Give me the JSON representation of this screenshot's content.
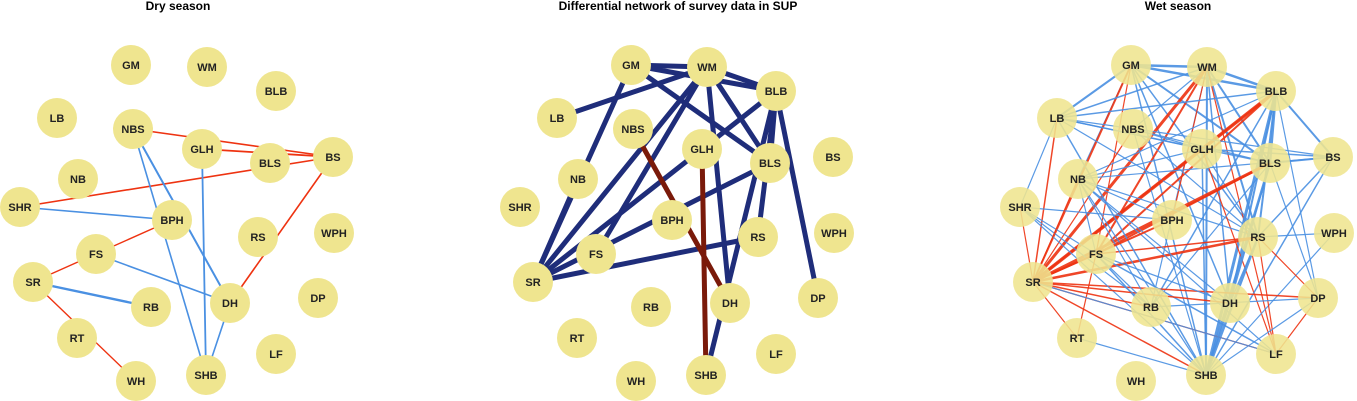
{
  "colors": {
    "node_fill": "#efe58f",
    "positive": "#4a90e2",
    "negative": "#ee3311",
    "diff_positive": "#1f2d7a",
    "diff_negative": "#7a1a0a"
  },
  "panels": [
    {
      "title": "Dry season",
      "edges": [
        {
          "a": "NBS",
          "b": "BS",
          "sign": "negative",
          "w": 1.6
        },
        {
          "a": "GLH",
          "b": "BS",
          "sign": "negative",
          "w": 1.8
        },
        {
          "a": "SHR",
          "b": "BS",
          "sign": "negative",
          "w": 1.6
        },
        {
          "a": "BS",
          "b": "DH",
          "sign": "negative",
          "w": 1.6
        },
        {
          "a": "BPH",
          "b": "SR",
          "sign": "negative",
          "w": 1.4
        },
        {
          "a": "SR",
          "b": "WH",
          "sign": "negative",
          "w": 1.4
        },
        {
          "a": "NBS",
          "b": "DH",
          "sign": "positive",
          "w": 2.0
        },
        {
          "a": "NBS",
          "b": "SHB",
          "sign": "positive",
          "w": 1.6
        },
        {
          "a": "GLH",
          "b": "SHB",
          "sign": "positive",
          "w": 1.8
        },
        {
          "a": "SHR",
          "b": "BPH",
          "sign": "positive",
          "w": 1.6
        },
        {
          "a": "FS",
          "b": "DH",
          "sign": "positive",
          "w": 1.6
        },
        {
          "a": "SR",
          "b": "RB",
          "sign": "positive",
          "w": 2.4
        },
        {
          "a": "DH",
          "b": "SHB",
          "sign": "positive",
          "w": 1.6
        }
      ]
    },
    {
      "title": "Differential network of survey data in SUP",
      "edges": [
        {
          "a": "GM",
          "b": "WM",
          "sign": "diff_positive",
          "w": 5
        },
        {
          "a": "GM",
          "b": "BLB",
          "sign": "diff_positive",
          "w": 5
        },
        {
          "a": "WM",
          "b": "BLB",
          "sign": "diff_positive",
          "w": 5
        },
        {
          "a": "GM",
          "b": "BLS",
          "sign": "diff_positive",
          "w": 5
        },
        {
          "a": "WM",
          "b": "BLS",
          "sign": "diff_positive",
          "w": 5
        },
        {
          "a": "WM",
          "b": "DH",
          "sign": "diff_positive",
          "w": 5
        },
        {
          "a": "GM",
          "b": "SR",
          "sign": "diff_positive",
          "w": 5
        },
        {
          "a": "WM",
          "b": "SR",
          "sign": "diff_positive",
          "w": 5
        },
        {
          "a": "WM",
          "b": "FS",
          "sign": "diff_positive",
          "w": 5
        },
        {
          "a": "LB",
          "b": "WM",
          "sign": "diff_positive",
          "w": 5
        },
        {
          "a": "BLB",
          "b": "SR",
          "sign": "diff_positive",
          "w": 5
        },
        {
          "a": "BLB",
          "b": "BLS",
          "sign": "diff_positive",
          "w": 5
        },
        {
          "a": "BLB",
          "b": "RS",
          "sign": "diff_positive",
          "w": 5
        },
        {
          "a": "BLB",
          "b": "SHB",
          "sign": "diff_positive",
          "w": 5
        },
        {
          "a": "BLB",
          "b": "DP",
          "sign": "diff_positive",
          "w": 5
        },
        {
          "a": "BLS",
          "b": "SR",
          "sign": "diff_positive",
          "w": 5
        },
        {
          "a": "NB",
          "b": "SR",
          "sign": "diff_positive",
          "w": 5
        },
        {
          "a": "SR",
          "b": "RS",
          "sign": "diff_positive",
          "w": 5
        },
        {
          "a": "NBS",
          "b": "DH",
          "sign": "diff_negative",
          "w": 5
        },
        {
          "a": "GLH",
          "b": "SHB",
          "sign": "diff_negative",
          "w": 5
        }
      ]
    },
    {
      "title": "Wet season",
      "edges": [
        {
          "a": "GM",
          "b": "WM",
          "sign": "positive",
          "w": 2.5
        },
        {
          "a": "GM",
          "b": "BLB",
          "sign": "positive",
          "w": 2.5
        },
        {
          "a": "GM",
          "b": "BLS",
          "sign": "positive",
          "w": 2
        },
        {
          "a": "GM",
          "b": "RS",
          "sign": "positive",
          "w": 1.5
        },
        {
          "a": "GM",
          "b": "SHB",
          "sign": "positive",
          "w": 1.5
        },
        {
          "a": "GM",
          "b": "DH",
          "sign": "positive",
          "w": 1.5
        },
        {
          "a": "GM",
          "b": "LB",
          "sign": "positive",
          "w": 2
        },
        {
          "a": "GM",
          "b": "NB",
          "sign": "positive",
          "w": 1.2
        },
        {
          "a": "GM",
          "b": "SR",
          "sign": "negative",
          "w": 2
        },
        {
          "a": "GM",
          "b": "FS",
          "sign": "negative",
          "w": 1.2
        },
        {
          "a": "WM",
          "b": "BLB",
          "sign": "positive",
          "w": 2.5
        },
        {
          "a": "WM",
          "b": "BLS",
          "sign": "positive",
          "w": 2
        },
        {
          "a": "WM",
          "b": "RS",
          "sign": "positive",
          "w": 2
        },
        {
          "a": "WM",
          "b": "SHB",
          "sign": "positive",
          "w": 2
        },
        {
          "a": "WM",
          "b": "DH",
          "sign": "positive",
          "w": 1.5
        },
        {
          "a": "WM",
          "b": "LB",
          "sign": "positive",
          "w": 1.5
        },
        {
          "a": "WM",
          "b": "NBS",
          "sign": "positive",
          "w": 1.2
        },
        {
          "a": "WM",
          "b": "RB",
          "sign": "positive",
          "w": 1.2
        },
        {
          "a": "WM",
          "b": "SR",
          "sign": "negative",
          "w": 3
        },
        {
          "a": "WM",
          "b": "FS",
          "sign": "negative",
          "w": 2
        },
        {
          "a": "WM",
          "b": "BPH",
          "sign": "negative",
          "w": 1.2
        },
        {
          "a": "WM",
          "b": "LF",
          "sign": "negative",
          "w": 1.2
        },
        {
          "a": "BLB",
          "b": "SR",
          "sign": "negative",
          "w": 3.5
        },
        {
          "a": "BLB",
          "b": "FS",
          "sign": "negative",
          "w": 2
        },
        {
          "a": "BLB",
          "b": "GLH",
          "sign": "negative",
          "w": 1.5
        },
        {
          "a": "BLB",
          "b": "BLS",
          "sign": "positive",
          "w": 2.5
        },
        {
          "a": "BLB",
          "b": "SHB",
          "sign": "positive",
          "w": 3
        },
        {
          "a": "BLB",
          "b": "DH",
          "sign": "positive",
          "w": 2
        },
        {
          "a": "BLB",
          "b": "RS",
          "sign": "positive",
          "w": 2
        },
        {
          "a": "BLB",
          "b": "BS",
          "sign": "positive",
          "w": 2
        },
        {
          "a": "BLB",
          "b": "LB",
          "sign": "positive",
          "w": 1.5
        },
        {
          "a": "BLB",
          "b": "DP",
          "sign": "positive",
          "w": 1.2
        },
        {
          "a": "BLB",
          "b": "RB",
          "sign": "positive",
          "w": 1.5
        },
        {
          "a": "BLB",
          "b": "NB",
          "sign": "positive",
          "w": 1.2
        },
        {
          "a": "LB",
          "b": "BLS",
          "sign": "positive",
          "w": 1.5
        },
        {
          "a": "LB",
          "b": "BS",
          "sign": "positive",
          "w": 1.2
        },
        {
          "a": "LB",
          "b": "SHR",
          "sign": "positive",
          "w": 1.2
        },
        {
          "a": "LB",
          "b": "RS",
          "sign": "positive",
          "w": 1.2
        },
        {
          "a": "LB",
          "b": "SR",
          "sign": "negative",
          "w": 1.5
        },
        {
          "a": "NBS",
          "b": "BLS",
          "sign": "positive",
          "w": 1.2
        },
        {
          "a": "NBS",
          "b": "RS",
          "sign": "positive",
          "w": 1.2
        },
        {
          "a": "NBS",
          "b": "SHB",
          "sign": "positive",
          "w": 1.2
        },
        {
          "a": "NBS",
          "b": "SR",
          "sign": "negative",
          "w": 1.2
        },
        {
          "a": "GLH",
          "b": "SHB",
          "sign": "positive",
          "w": 1.5
        },
        {
          "a": "GLH",
          "b": "RS",
          "sign": "positive",
          "w": 1.2
        },
        {
          "a": "GLH",
          "b": "BS",
          "sign": "positive",
          "w": 1.5
        },
        {
          "a": "GLH",
          "b": "NB",
          "sign": "positive",
          "w": 1.2
        },
        {
          "a": "GLH",
          "b": "SR",
          "sign": "negative",
          "w": 2
        },
        {
          "a": "GLH",
          "b": "LF",
          "sign": "negative",
          "w": 1.2
        },
        {
          "a": "BLS",
          "b": "SHB",
          "sign": "positive",
          "w": 2.5
        },
        {
          "a": "BLS",
          "b": "BS",
          "sign": "positive",
          "w": 2
        },
        {
          "a": "BLS",
          "b": "DH",
          "sign": "positive",
          "w": 1.5
        },
        {
          "a": "BLS",
          "b": "RB",
          "sign": "positive",
          "w": 1.2
        },
        {
          "a": "BLS",
          "b": "DP",
          "sign": "positive",
          "w": 1.2
        },
        {
          "a": "BLS",
          "b": "SR",
          "sign": "negative",
          "w": 3
        },
        {
          "a": "BLS",
          "b": "FS",
          "sign": "negative",
          "w": 2
        },
        {
          "a": "BS",
          "b": "RS",
          "sign": "positive",
          "w": 1.5
        },
        {
          "a": "BS",
          "b": "SHB",
          "sign": "positive",
          "w": 1.5
        },
        {
          "a": "BS",
          "b": "NB",
          "sign": "positive",
          "w": 1.2
        },
        {
          "a": "WPH",
          "b": "SHB",
          "sign": "positive",
          "w": 1.2
        },
        {
          "a": "WPH",
          "b": "RS",
          "sign": "positive",
          "w": 1.2
        },
        {
          "a": "RS",
          "b": "SHB",
          "sign": "positive",
          "w": 2.5
        },
        {
          "a": "RS",
          "b": "SR",
          "sign": "negative",
          "w": 2.5
        },
        {
          "a": "RS",
          "b": "FS",
          "sign": "negative",
          "w": 1.5
        },
        {
          "a": "RS",
          "b": "LF",
          "sign": "negative",
          "w": 1.2
        },
        {
          "a": "RS",
          "b": "DP",
          "sign": "negative",
          "w": 1.2
        },
        {
          "a": "RS",
          "b": "DH",
          "sign": "positive",
          "w": 1.5
        },
        {
          "a": "RS",
          "b": "NB",
          "sign": "positive",
          "w": 1.2
        },
        {
          "a": "DP",
          "b": "SR",
          "sign": "negative",
          "w": 1.5
        },
        {
          "a": "DP",
          "b": "SHB",
          "sign": "positive",
          "w": 1.2
        },
        {
          "a": "DP",
          "b": "LF",
          "sign": "negative",
          "w": 1.2
        },
        {
          "a": "DP",
          "b": "RB",
          "sign": "positive",
          "w": 1.2
        },
        {
          "a": "LF",
          "b": "SR",
          "sign": "negative",
          "w": 1.2
        },
        {
          "a": "LF",
          "b": "FS",
          "sign": "positive",
          "w": 1.5
        },
        {
          "a": "LF",
          "b": "NB",
          "sign": "positive",
          "w": 1.2
        },
        {
          "a": "SHB",
          "b": "SR",
          "sign": "negative",
          "w": 1.5
        },
        {
          "a": "SHB",
          "b": "FS",
          "sign": "positive",
          "w": 1.5
        },
        {
          "a": "SHB",
          "b": "NB",
          "sign": "positive",
          "w": 1.2
        },
        {
          "a": "SHB",
          "b": "SHR",
          "sign": "positive",
          "w": 1.2
        },
        {
          "a": "SHB",
          "b": "LB",
          "sign": "positive",
          "w": 1.5
        },
        {
          "a": "SHB",
          "b": "RT",
          "sign": "positive",
          "w": 1.2
        },
        {
          "a": "SHB",
          "b": "DH",
          "sign": "positive",
          "w": 1.5
        },
        {
          "a": "DH",
          "b": "SR",
          "sign": "negative",
          "w": 1.5
        },
        {
          "a": "DH",
          "b": "NB",
          "sign": "positive",
          "w": 1.2
        },
        {
          "a": "DH",
          "b": "FS",
          "sign": "positive",
          "w": 1.2
        },
        {
          "a": "RB",
          "b": "SR",
          "sign": "negative",
          "w": 1.5
        },
        {
          "a": "RB",
          "b": "FS",
          "sign": "positive",
          "w": 1.2
        },
        {
          "a": "RB",
          "b": "NB",
          "sign": "positive",
          "w": 1.2
        },
        {
          "a": "RB",
          "b": "SHR",
          "sign": "positive",
          "w": 1.2
        },
        {
          "a": "BPH",
          "b": "SR",
          "sign": "negative",
          "w": 2
        },
        {
          "a": "BPH",
          "b": "SHR",
          "sign": "positive",
          "w": 1.2
        },
        {
          "a": "BPH",
          "b": "NB",
          "sign": "positive",
          "w": 1.2
        },
        {
          "a": "FS",
          "b": "SR",
          "sign": "negative",
          "w": 2
        },
        {
          "a": "FS",
          "b": "NB",
          "sign": "positive",
          "w": 1.2
        },
        {
          "a": "FS",
          "b": "SHR",
          "sign": "positive",
          "w": 1.2
        },
        {
          "a": "NB",
          "b": "SR",
          "sign": "negative",
          "w": 1.2
        },
        {
          "a": "SHR",
          "b": "SR",
          "sign": "negative",
          "w": 1.2
        },
        {
          "a": "RT",
          "b": "SR",
          "sign": "negative",
          "w": 1.2
        },
        {
          "a": "RT",
          "b": "FS",
          "sign": "negative",
          "w": 1.2
        },
        {
          "a": "SR",
          "b": "LF",
          "sign": "positive",
          "w": 1.2
        },
        {
          "a": "NBS",
          "b": "GLH",
          "sign": "positive",
          "w": 1.2
        },
        {
          "a": "LB",
          "b": "GLH",
          "sign": "positive",
          "w": 1.2
        }
      ]
    }
  ]
}
